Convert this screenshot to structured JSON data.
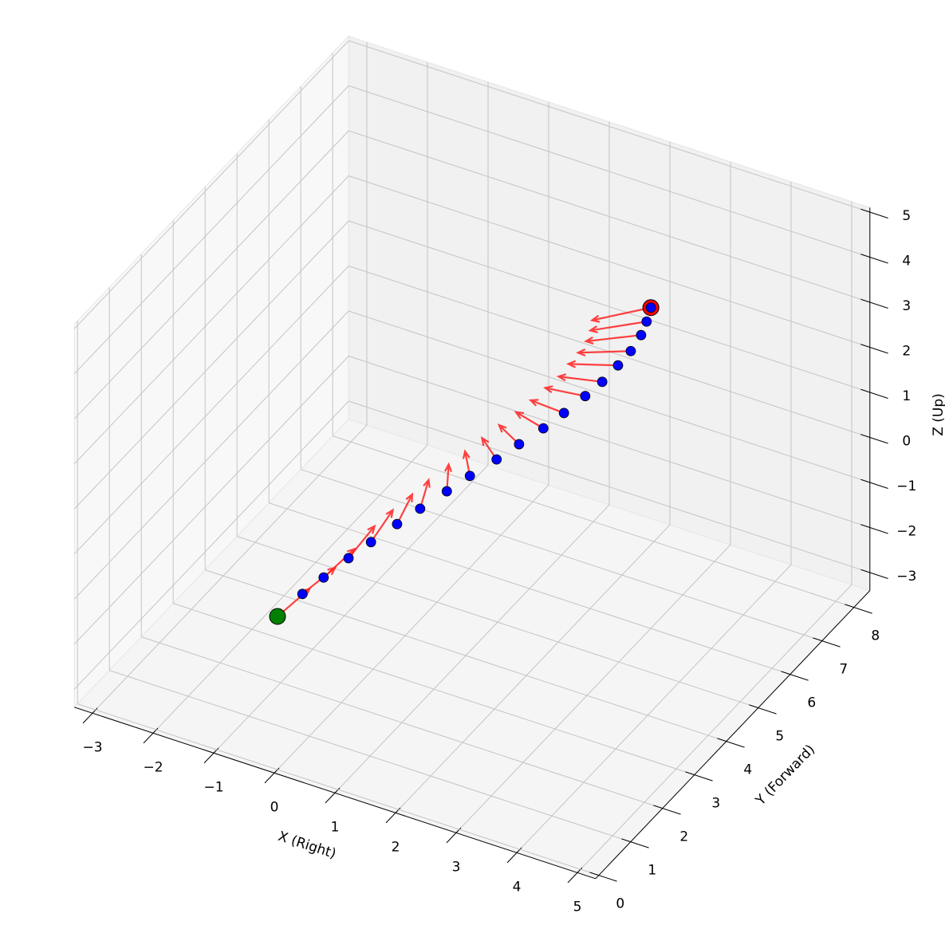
{
  "chart_data": {
    "type": "trajectory3d",
    "xlabel": "X (Right)",
    "ylabel": "Y (Forward)",
    "zlabel": "Z (Up)",
    "xlim": [
      -3.3,
      5.3
    ],
    "ylim": [
      -0.1,
      8.5
    ],
    "zlim": [
      -3.4,
      5.1
    ],
    "xticks": [
      {
        "value": -3,
        "label": "−3"
      },
      {
        "value": -2,
        "label": "−2"
      },
      {
        "value": -1,
        "label": "−1"
      },
      0,
      1,
      2,
      3,
      4,
      5
    ],
    "yticks": [
      0,
      1,
      2,
      3,
      4,
      5,
      6,
      7,
      8
    ],
    "zticks": [
      {
        "value": -3,
        "label": "−3"
      },
      {
        "value": -2,
        "label": "−2"
      },
      {
        "value": -1,
        "label": "−1"
      },
      0,
      1,
      2,
      3,
      4,
      5
    ],
    "grid": true,
    "x": [
      0,
      0.2,
      0.34,
      0.54,
      0.7,
      0.92,
      1.09,
      1.32,
      1.49,
      1.72,
      1.88,
      2.07,
      2.2,
      2.34,
      2.41,
      2.46,
      2.46,
      2.42,
      2.3,
      2.16
    ],
    "y": [
      0,
      0.4,
      0.8,
      1.2,
      1.6,
      2.0,
      2.4,
      2.8,
      3.2,
      3.6,
      4.0,
      4.4,
      4.8,
      5.2,
      5.6,
      6.0,
      6.4,
      6.8,
      7.2,
      7.6
    ],
    "z": [
      0,
      0.29,
      0.42,
      0.64,
      0.77,
      0.97,
      1.09,
      1.28,
      1.4,
      1.57,
      1.68,
      1.82,
      1.92,
      2.06,
      2.11,
      2.2,
      2.22,
      2.26,
      2.21,
      2.16
    ],
    "color": "#0000ff",
    "start_color": "#008000",
    "end_color": "#ff0000",
    "arrows": {
      "color": "#ff2020",
      "u": [
        0.53,
        0.54,
        0.51,
        0.43,
        0.36,
        0.25,
        0.14,
        0.03,
        -0.08,
        -0.24,
        -0.33,
        -0.45,
        -0.55,
        -0.66,
        -0.72,
        -0.82,
        -0.87,
        -0.91,
        -0.93,
        -0.97
      ],
      "w": [
        0.85,
        0.82,
        0.86,
        0.9,
        0.87,
        0.77,
        0.7,
        0.61,
        0.51,
        0.37,
        0.28,
        0.16,
        0.04,
        -0.11,
        -0.2,
        -0.33,
        -0.42,
        -0.54,
        -0.61,
        -0.71
      ]
    }
  }
}
